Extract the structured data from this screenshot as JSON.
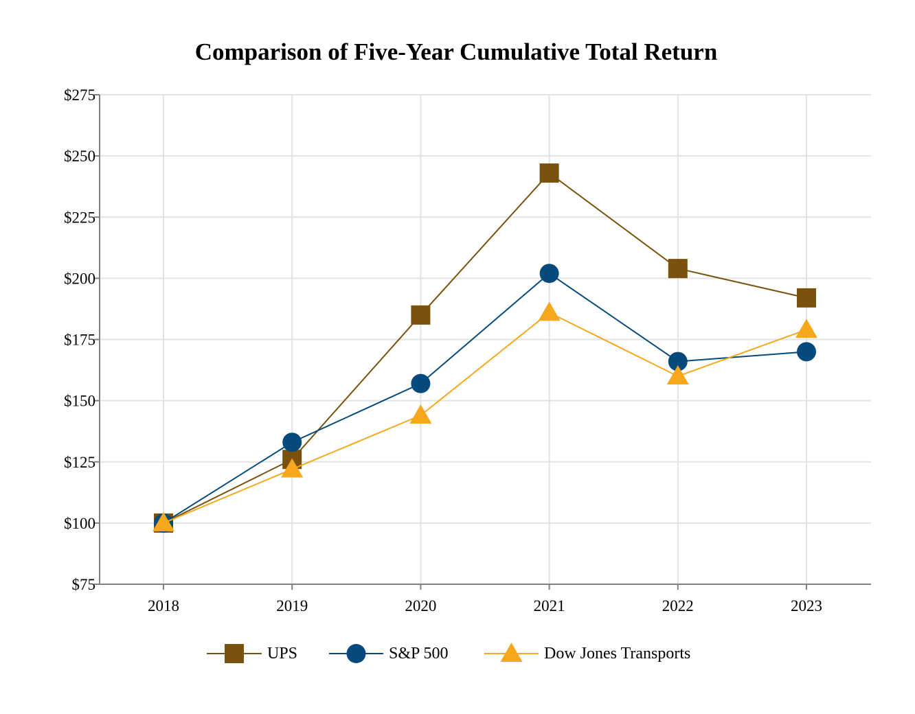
{
  "chart_data": {
    "type": "line",
    "title": "Comparison of Five-Year Cumulative Total Return",
    "xlabel": "",
    "ylabel": "",
    "x": [
      "2018",
      "2019",
      "2020",
      "2021",
      "2022",
      "2023"
    ],
    "ylim": [
      75,
      275
    ],
    "yticks": [
      75,
      100,
      125,
      150,
      175,
      200,
      225,
      250,
      275
    ],
    "ytick_labels": [
      "$75",
      "$100",
      "$125",
      "$150",
      "$175",
      "$200",
      "$225",
      "$250",
      "$275"
    ],
    "grid": true,
    "legend_position": "bottom",
    "series": [
      {
        "name": "UPS",
        "marker": "square",
        "color": "#7a520d",
        "values": [
          100,
          126,
          185,
          243,
          204,
          192
        ]
      },
      {
        "name": "S&P 500",
        "marker": "circle",
        "color": "#054a7c",
        "values": [
          100,
          133,
          157,
          202,
          166,
          170
        ]
      },
      {
        "name": "Dow Jones Transports",
        "marker": "triangle",
        "color": "#f5a81c",
        "values": [
          100,
          122,
          144,
          186,
          160,
          179
        ]
      }
    ]
  }
}
